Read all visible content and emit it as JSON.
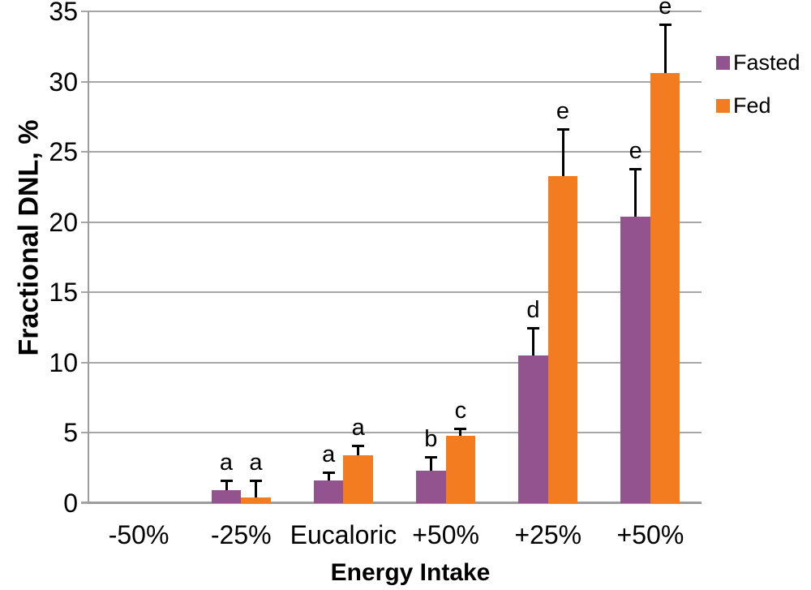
{
  "chart_data": {
    "type": "bar",
    "title": "",
    "xlabel": "Energy Intake",
    "ylabel": "Fractional DNL, %",
    "categories": [
      "-50%",
      "-25%",
      "Eucaloric",
      "+50%",
      "+25%",
      "+50%"
    ],
    "series": [
      {
        "name": "Fasted",
        "color": "#92538F",
        "values": [
          0,
          0.9,
          1.6,
          2.3,
          10.5,
          20.4
        ],
        "errors_upper": [
          0,
          0.7,
          0.6,
          1.0,
          2.0,
          3.4
        ],
        "significance_letters": [
          "",
          "a",
          "a",
          "b",
          "d",
          "e"
        ]
      },
      {
        "name": "Fed",
        "color": "#F47C20",
        "values": [
          0,
          0.4,
          3.4,
          4.8,
          23.3,
          30.6
        ],
        "errors_upper": [
          0,
          1.2,
          0.7,
          0.5,
          3.3,
          3.5
        ],
        "significance_letters": [
          "",
          "a",
          "a",
          "c",
          "e",
          "e"
        ]
      }
    ],
    "y_axis": {
      "min": 0,
      "max": 35,
      "step": 5,
      "tick_labels": [
        "0",
        "5",
        "10",
        "15",
        "20",
        "25",
        "30",
        "35"
      ]
    },
    "legend": {
      "position": "top-right",
      "entries": [
        "Fasted",
        "Fed"
      ]
    },
    "grid": true,
    "grid_color": "#A6A6A6",
    "axis_color": "#9C9C9C",
    "error_bar_color": "#000000"
  }
}
